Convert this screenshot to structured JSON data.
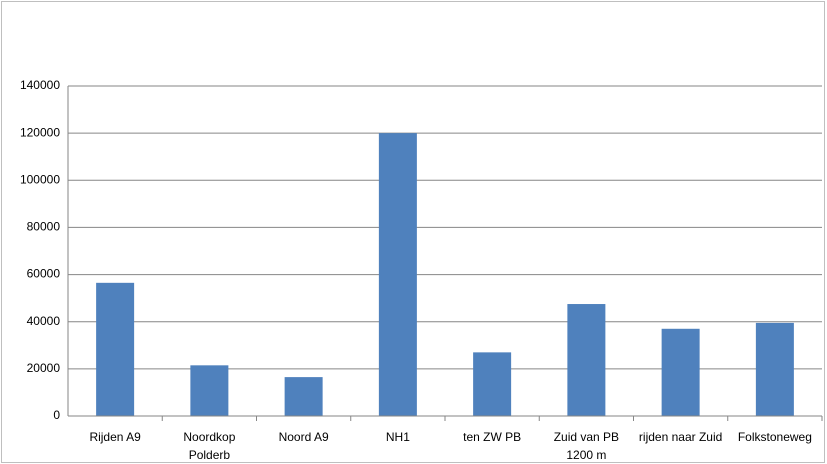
{
  "chart_data": {
    "type": "bar",
    "categories": [
      "Rijden A9",
      "Noordkop Polderb",
      "Noord A9",
      "NH1",
      "ten ZW PB",
      "Zuid van PB 1200 m",
      "rijden naar Zuid",
      "Folkstoneweg"
    ],
    "values": [
      56500,
      21500,
      16500,
      120000,
      27000,
      47500,
      37000,
      39500
    ],
    "color": "#4f81bd",
    "ylim": [
      0,
      140000
    ],
    "yticks": [
      0,
      20000,
      40000,
      60000,
      80000,
      100000,
      120000,
      140000
    ],
    "grid": true
  }
}
